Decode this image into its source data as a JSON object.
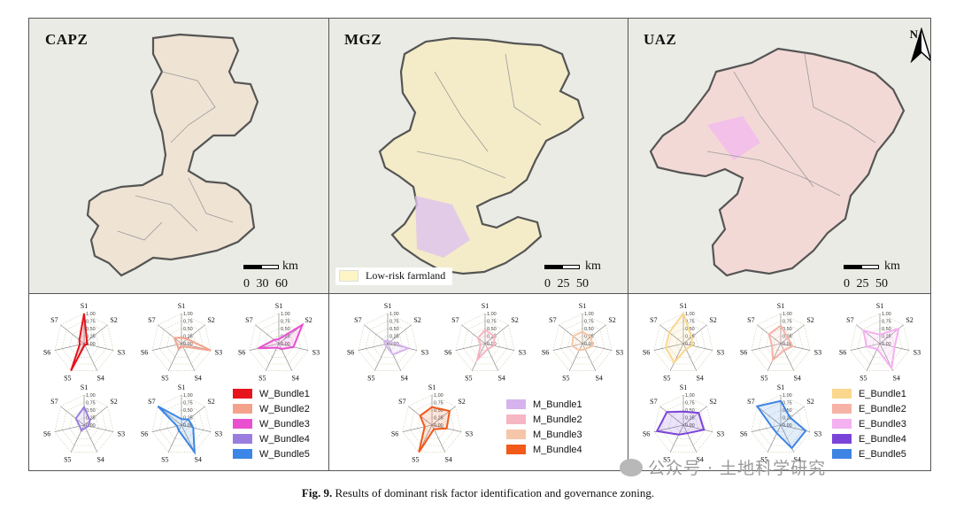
{
  "maps": [
    {
      "label": "CAPZ",
      "scale_unit": "km",
      "scale_ticks": "0 30 60",
      "show_legend": false,
      "north": false
    },
    {
      "label": "MGZ",
      "scale_unit": "km",
      "scale_ticks": "0 25 50",
      "show_legend": true,
      "legend_text": "Low-risk farmland",
      "north": false
    },
    {
      "label": "UAZ",
      "scale_unit": "km",
      "scale_ticks": "0 25 50",
      "show_legend": false,
      "north": true,
      "north_label": "N"
    }
  ],
  "radar": {
    "axes": [
      "S1",
      "S2",
      "S3",
      "S4",
      "S5",
      "S6",
      "S7"
    ],
    "tick_labels": [
      "1.00",
      "0.75",
      "0.50",
      "0.25",
      "0.00"
    ]
  },
  "groups": [
    {
      "legend": [
        {
          "name": "W_Bundle1",
          "color": "#e8141c"
        },
        {
          "name": "W_Bundle2",
          "color": "#f4a28c"
        },
        {
          "name": "W_Bundle3",
          "color": "#ea4fd0"
        },
        {
          "name": "W_Bundle4",
          "color": "#9b7de0"
        },
        {
          "name": "W_Bundle5",
          "color": "#3b86e6"
        }
      ],
      "charts": [
        {
          "values": [
            1.0,
            0.12,
            0.1,
            0.05,
            1.0,
            0.15,
            0.2
          ]
        },
        {
          "values": [
            0.2,
            0.25,
            1.0,
            0.1,
            0.2,
            0.15,
            0.3
          ]
        },
        {
          "values": [
            0.15,
            1.0,
            0.5,
            0.2,
            0.15,
            0.7,
            0.2
          ]
        },
        {
          "values": [
            0.6,
            0.25,
            0.15,
            0.1,
            0.2,
            0.15,
            0.35
          ]
        },
        {
          "values": [
            0.2,
            0.3,
            0.4,
            1.0,
            0.2,
            0.15,
            1.0
          ]
        }
      ]
    },
    {
      "legend": [
        {
          "name": "M_Bundle1",
          "color": "#d6b3ee"
        },
        {
          "name": "M_Bundle2",
          "color": "#f6b6c3"
        },
        {
          "name": "M_Bundle3",
          "color": "#f6c6a8"
        },
        {
          "name": "M_Bundle4",
          "color": "#f15a19"
        }
      ],
      "charts": [
        {
          "values": [
            0.1,
            0.1,
            0.7,
            0.4,
            0.1,
            0.1,
            0.15
          ]
        },
        {
          "values": [
            0.45,
            0.4,
            0.3,
            0.2,
            0.6,
            0.15,
            0.3
          ]
        },
        {
          "values": [
            0.4,
            0.35,
            0.35,
            0.2,
            0.25,
            0.35,
            0.4
          ]
        },
        {
          "values": [
            0.6,
            0.75,
            0.5,
            0.15,
            1.0,
            0.25,
            0.5
          ]
        }
      ]
    },
    {
      "legend": [
        {
          "name": "E_Bundle1",
          "color": "#fbd78d"
        },
        {
          "name": "E_Bundle2",
          "color": "#f6b2a6"
        },
        {
          "name": "E_Bundle3",
          "color": "#f5b0f2"
        },
        {
          "name": "E_Bundle4",
          "color": "#7b44d8"
        },
        {
          "name": "E_Bundle5",
          "color": "#3e84e4"
        }
      ],
      "charts": [
        {
          "values": [
            1.0,
            0.35,
            0.3,
            0.2,
            0.7,
            0.6,
            0.6
          ]
        },
        {
          "values": [
            0.6,
            0.3,
            0.4,
            0.25,
            0.6,
            0.3,
            0.5
          ]
        },
        {
          "values": [
            0.3,
            0.8,
            0.5,
            0.9,
            0.2,
            0.45,
            0.7
          ]
        },
        {
          "values": [
            0.45,
            0.65,
            0.7,
            0.3,
            0.35,
            0.9,
            0.7
          ]
        },
        {
          "values": [
            0.8,
            0.4,
            0.85,
            0.85,
            0.3,
            0.3,
            1.0
          ]
        }
      ]
    }
  ],
  "caption": {
    "fig": "Fig. 9.",
    "text": "Results of dominant risk factor identification and governance zoning."
  },
  "watermark": "公众号 · 土地科学研究"
}
